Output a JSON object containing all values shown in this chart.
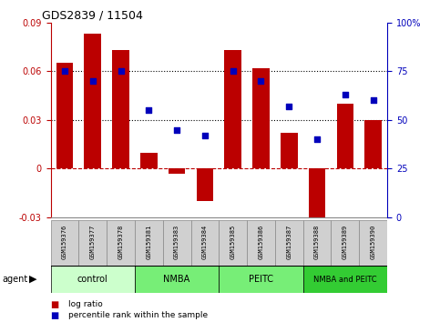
{
  "title": "GDS2839 / 11504",
  "samples": [
    "GSM159376",
    "GSM159377",
    "GSM159378",
    "GSM159381",
    "GSM159383",
    "GSM159384",
    "GSM159385",
    "GSM159386",
    "GSM159387",
    "GSM159388",
    "GSM159389",
    "GSM159390"
  ],
  "log_ratio": [
    0.065,
    0.083,
    0.073,
    0.01,
    -0.003,
    -0.02,
    0.073,
    0.062,
    0.022,
    -0.03,
    0.04,
    0.03
  ],
  "pct_rank": [
    75,
    70,
    75,
    55,
    45,
    42,
    75,
    70,
    57,
    40,
    63,
    60
  ],
  "bar_color": "#bb0000",
  "dot_color": "#0000bb",
  "groups": [
    {
      "label": "control",
      "start": 0,
      "end": 3,
      "color": "#ccffcc"
    },
    {
      "label": "NMBA",
      "start": 3,
      "end": 6,
      "color": "#77ee77"
    },
    {
      "label": "PEITC",
      "start": 6,
      "end": 9,
      "color": "#77ee77"
    },
    {
      "label": "NMBA and PEITC",
      "start": 9,
      "end": 12,
      "color": "#33cc33"
    }
  ],
  "ylim_left": [
    -0.03,
    0.09
  ],
  "ylim_right": [
    0,
    100
  ],
  "yticks_left": [
    -0.03,
    0,
    0.03,
    0.06,
    0.09
  ],
  "yticks_right": [
    0,
    25,
    50,
    75,
    100
  ],
  "hlines": [
    0.03,
    0.06
  ],
  "legend_items": [
    {
      "label": "log ratio",
      "color": "#bb0000"
    },
    {
      "label": "percentile rank within the sample",
      "color": "#0000bb"
    }
  ],
  "sample_box_color": "#d0d0d0",
  "group_border_color": "#000000"
}
